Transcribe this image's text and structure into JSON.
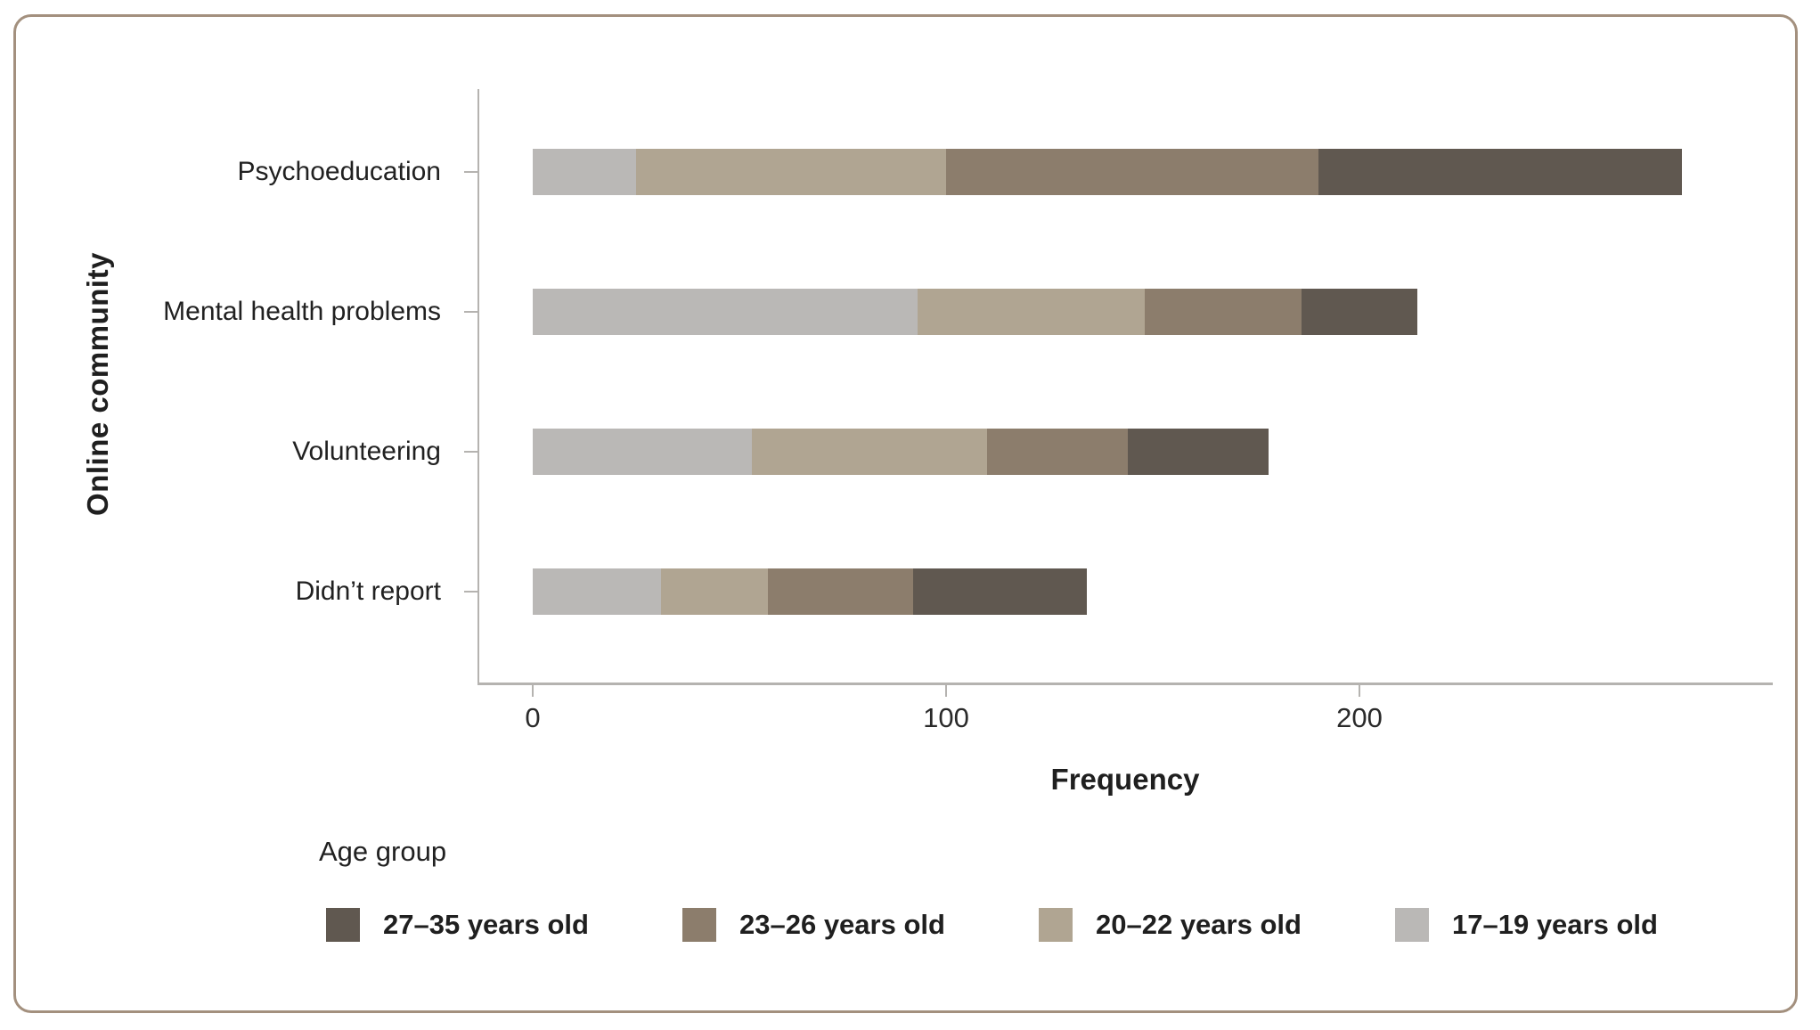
{
  "chart_data": {
    "type": "bar",
    "orientation": "horizontal",
    "stacked": true,
    "title": "",
    "xlabel": "Frequency",
    "ylabel": "Online community",
    "categories": [
      "Psychoeducation",
      "Mental health problems",
      "Volunteering",
      "Didn’t report"
    ],
    "series": [
      {
        "name": "17–19 years old",
        "color": "#bab8b6",
        "values": [
          25,
          93,
          53,
          31
        ]
      },
      {
        "name": "20–22 years old",
        "color": "#b0a592",
        "values": [
          75,
          55,
          57,
          26
        ]
      },
      {
        "name": "23–26 years old",
        "color": "#8c7d6c",
        "values": [
          90,
          38,
          34,
          35
        ]
      },
      {
        "name": "27–35 years old",
        "color": "#605850",
        "values": [
          88,
          28,
          34,
          42
        ]
      }
    ],
    "totals": [
      278,
      214,
      178,
      134
    ],
    "xlim": [
      0,
      300
    ],
    "x_ticks": [
      0,
      100,
      200
    ],
    "grid": false,
    "legend_position": "bottom",
    "legend": {
      "title": "Age group",
      "items": [
        {
          "label": "27–35 years old",
          "color": "#605850"
        },
        {
          "label": "23–26 years old",
          "color": "#8c7d6c"
        },
        {
          "label": "20–22 years old",
          "color": "#b0a592"
        },
        {
          "label": "17–19 years old",
          "color": "#bab8b6"
        }
      ]
    },
    "axis_color": "#b5b3b0",
    "text_color": "#212121",
    "card_border_color": "#a3907e"
  }
}
